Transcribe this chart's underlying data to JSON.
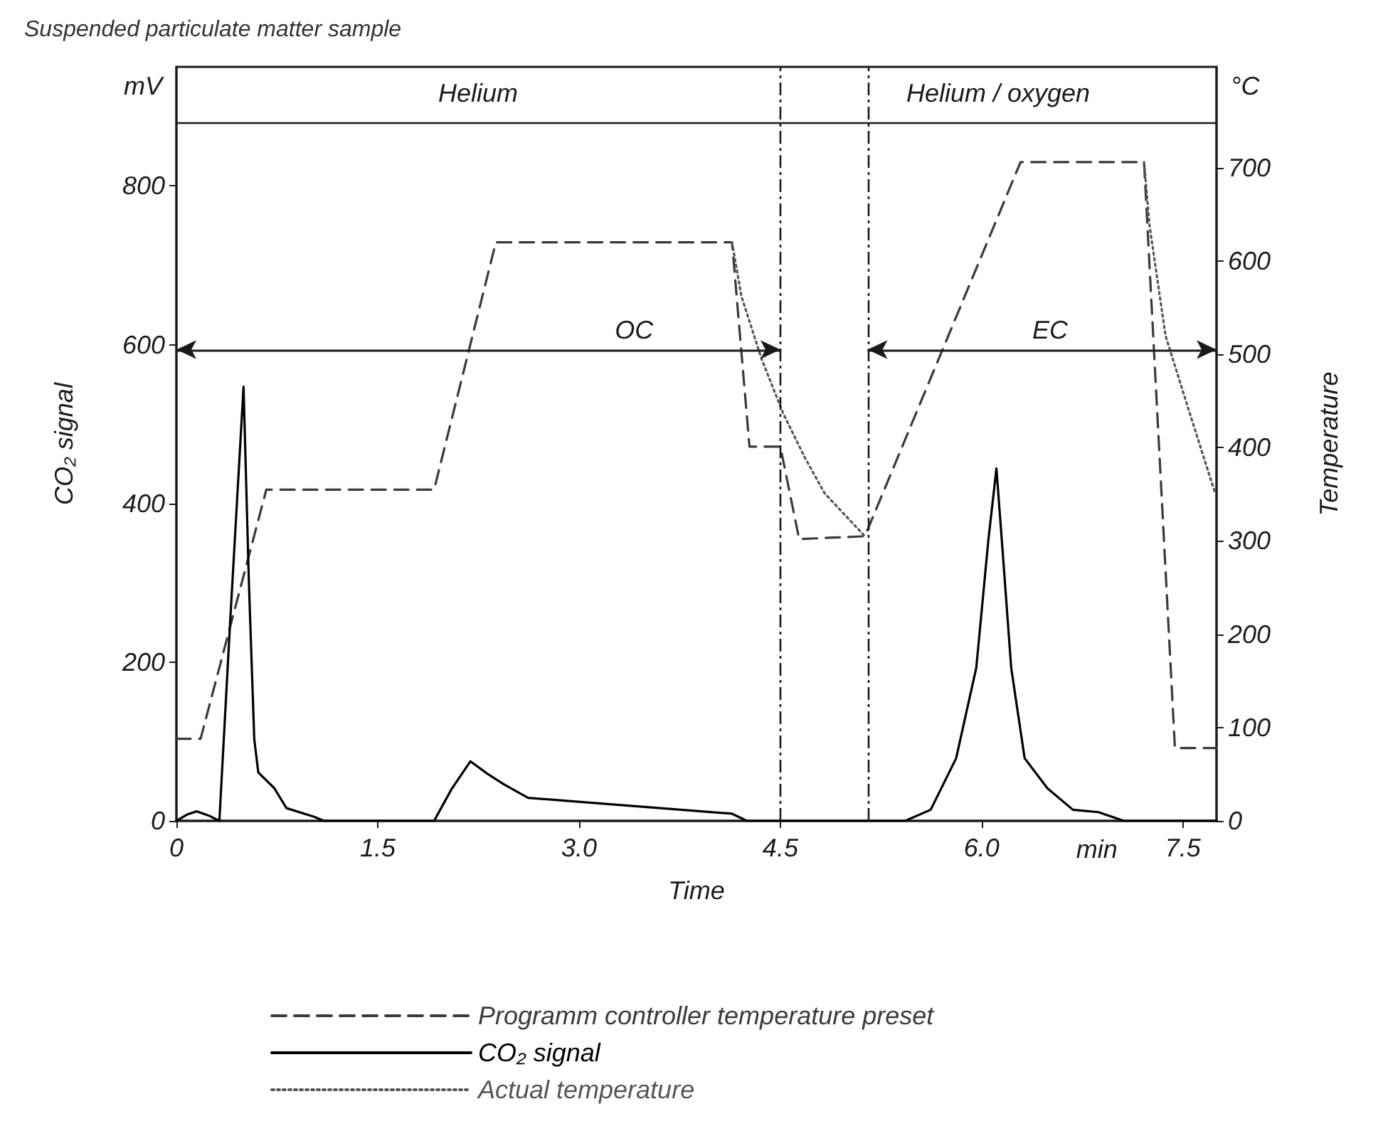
{
  "chart_data": {
    "type": "line",
    "title": "Suspended particulate matter sample",
    "xlabel": "Time",
    "ylabel": "CO₂ signal",
    "y2label": "Temperature",
    "xlim": [
      0,
      7.75
    ],
    "xticks": [
      0,
      1.5,
      {
        "value": 3,
        "label": "3.0"
      },
      4.5,
      {
        "value": 6,
        "label": "6.0"
      },
      7.5
    ],
    "ylim": [
      0,
      950
    ],
    "yticks": [
      0,
      200,
      400,
      600,
      800
    ],
    "y2lim": [
      0,
      808
    ],
    "y2ticks": [
      0,
      100,
      200,
      300,
      400,
      500,
      600,
      700
    ],
    "grid": false,
    "legend": "bottom",
    "series": [
      {
        "name": "Programm controller temperature preset",
        "color": "#3a3a3a",
        "axis": "y2",
        "line_style": "dashed",
        "x": [
          0,
          0.18,
          0.67,
          1.92,
          2.38,
          4.14,
          4.27,
          4.5,
          4.64,
          5.13,
          6.29,
          7.21,
          7.44,
          7.75
        ],
        "values": [
          88,
          88,
          355,
          355,
          620,
          620,
          401,
          401,
          302,
          305,
          706,
          706,
          78,
          78
        ]
      },
      {
        "name": "CO₂ signal",
        "color": "#000000",
        "axis": "y",
        "line_style": "solid",
        "x": [
          0,
          0.08,
          0.15,
          0.25,
          0.32,
          0.4,
          0.5,
          0.54,
          0.58,
          0.61,
          0.73,
          0.82,
          1.03,
          1.1,
          1.92,
          2.05,
          2.19,
          2.32,
          2.44,
          2.62,
          4.14,
          4.25,
          5.43,
          5.62,
          5.81,
          5.96,
          6.05,
          6.11,
          6.15,
          6.22,
          6.32,
          6.49,
          6.68,
          6.87,
          7.06,
          7.75
        ],
        "values": [
          0,
          8,
          12,
          6,
          0,
          250,
          547,
          300,
          103,
          61,
          41,
          16,
          5,
          0,
          0,
          40,
          75,
          59,
          46,
          29,
          9,
          0,
          0,
          14,
          79,
          193,
          354,
          444,
          354,
          193,
          79,
          41,
          14,
          11,
          0,
          0
        ]
      },
      {
        "name": "Actual temperature",
        "color": "#555555",
        "axis": "y2",
        "line_style": "dotted",
        "x": [
          4.14,
          4.21,
          4.36,
          4.52,
          4.68,
          4.83,
          5.13,
          5.5,
          7.21,
          7.25,
          7.37,
          7.55,
          7.74
        ],
        "values": [
          620,
          562,
          495,
          437,
          390,
          351,
          305,
          null,
          706,
          639,
          520,
          437,
          351
        ]
      }
    ],
    "ref_lines": [
      {
        "axis": "y",
        "value": 880,
        "label": null
      },
      {
        "axis": "x",
        "value": 4.5,
        "label": null
      },
      {
        "axis": "x",
        "value": 5.15,
        "label": null
      }
    ],
    "annotations": [
      "Helium",
      "Helium / oxygen",
      "OC",
      "EC",
      "mV",
      "°C",
      "min"
    ]
  }
}
